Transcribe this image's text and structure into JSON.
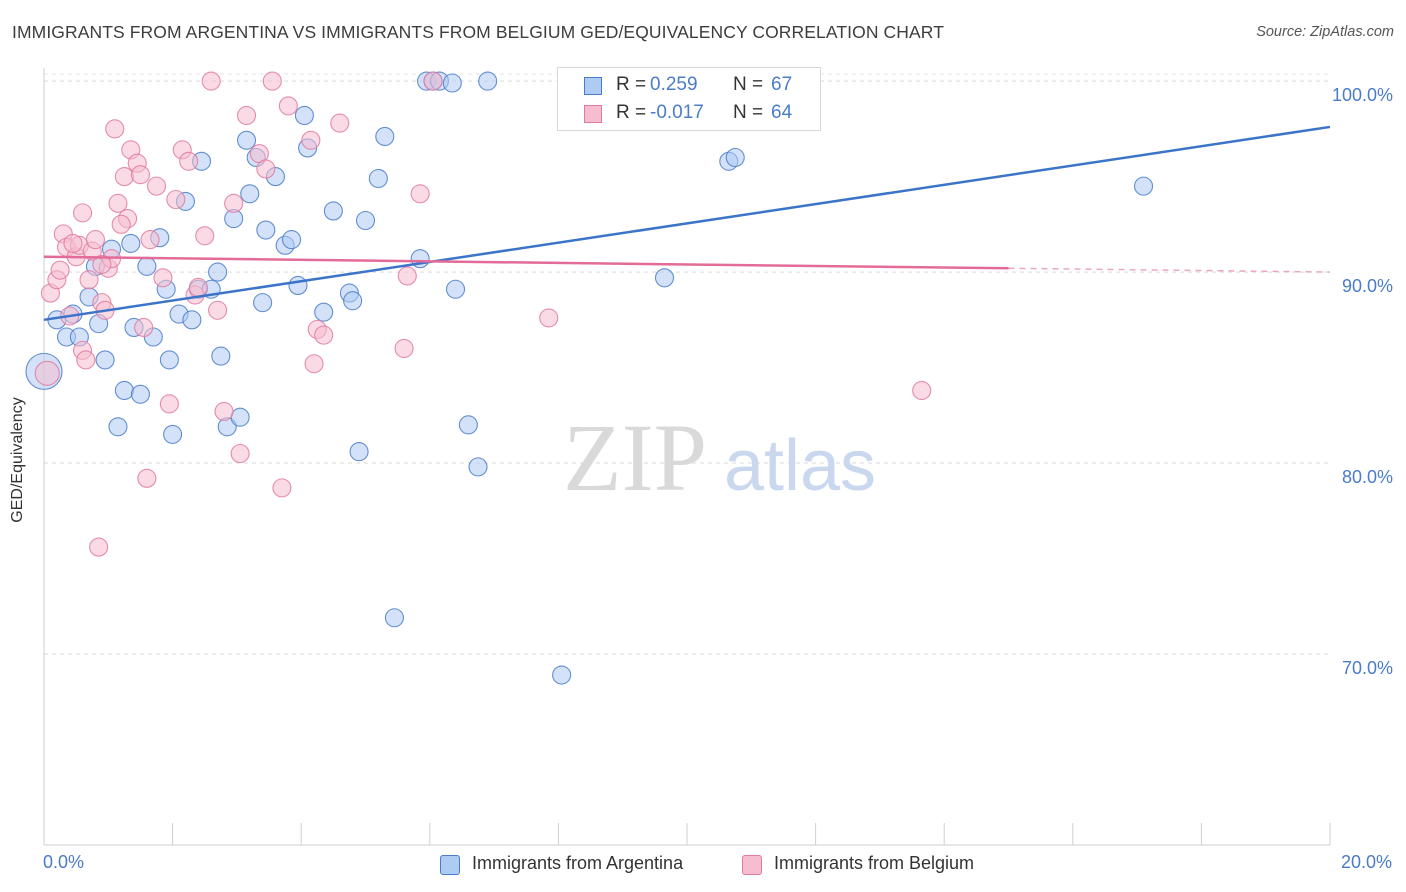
{
  "header": {
    "title": "IMMIGRANTS FROM ARGENTINA VS IMMIGRANTS FROM BELGIUM GED/EQUIVALENCY CORRELATION CHART",
    "source": "Source: ZipAtlas.com"
  },
  "watermark": {
    "zip": "ZIP",
    "atlas": "atlas"
  },
  "stats": [
    {
      "r_label": "R =",
      "r_value": "0.259",
      "n_label": "N =",
      "n_value": "67",
      "color": "#4a7cc9",
      "fill": "#aecbf2"
    },
    {
      "r_label": "R =",
      "r_value": "-0.017",
      "n_label": "N =",
      "n_value": "64",
      "color": "#4a7cc9",
      "fill": "#f6bdd0"
    }
  ],
  "legend": [
    {
      "label": "Immigrants from Argentina",
      "color": "#4a7cc9",
      "fill": "#aecbf2"
    },
    {
      "label": "Immigrants from Belgium",
      "color": "#e07aa0",
      "fill": "#f6bdd0"
    }
  ],
  "chart_data": {
    "type": "scatter",
    "title": "IMMIGRANTS FROM ARGENTINA VS IMMIGRANTS FROM BELGIUM GED/EQUIVALENCY CORRELATION CHART",
    "xlabel": "",
    "ylabel": "GED/Equivalency",
    "xlim": [
      0,
      20
    ],
    "ylim": [
      60,
      101
    ],
    "x_ticks": [
      "0.0%",
      "20.0%"
    ],
    "y_ticks": [
      {
        "value": 100,
        "label": "100.0%"
      },
      {
        "value": 90,
        "label": "90.0%"
      },
      {
        "value": 80,
        "label": "80.0%"
      },
      {
        "value": 70,
        "label": "70.0%"
      }
    ],
    "grid": "horizontal-dashed",
    "series": [
      {
        "name": "Immigrants from Argentina",
        "stroke": "#4a7cc9",
        "fill": "#aecbf2",
        "trend": {
          "x": [
            0,
            20
          ],
          "y": [
            87.5,
            97.6
          ]
        },
        "points": [
          [
            0.0,
            84.8,
            18
          ],
          [
            0.2,
            87.5,
            9
          ],
          [
            0.35,
            86.6,
            9
          ],
          [
            0.45,
            87.8,
            9
          ],
          [
            0.55,
            86.6,
            9
          ],
          [
            0.7,
            88.7,
            9
          ],
          [
            0.8,
            90.3,
            9
          ],
          [
            0.85,
            87.3,
            9
          ],
          [
            0.95,
            85.4,
            9
          ],
          [
            1.05,
            91.2,
            9
          ],
          [
            1.15,
            81.9,
            9
          ],
          [
            1.25,
            83.8,
            9
          ],
          [
            1.35,
            91.5,
            9
          ],
          [
            1.4,
            87.1,
            9
          ],
          [
            1.5,
            83.6,
            9
          ],
          [
            1.6,
            90.3,
            9
          ],
          [
            1.7,
            86.6,
            9
          ],
          [
            1.8,
            91.8,
            9
          ],
          [
            1.9,
            89.1,
            9
          ],
          [
            1.95,
            85.4,
            9
          ],
          [
            2.0,
            81.5,
            9
          ],
          [
            2.1,
            87.8,
            9
          ],
          [
            2.2,
            93.7,
            9
          ],
          [
            2.3,
            87.5,
            9
          ],
          [
            2.4,
            89.1,
            9
          ],
          [
            2.45,
            95.8,
            9
          ],
          [
            2.6,
            89.1,
            9
          ],
          [
            2.7,
            90.0,
            9
          ],
          [
            2.75,
            85.6,
            9
          ],
          [
            2.85,
            81.9,
            9
          ],
          [
            2.95,
            92.8,
            9
          ],
          [
            3.05,
            82.4,
            9
          ],
          [
            3.15,
            96.9,
            9
          ],
          [
            3.2,
            94.1,
            9
          ],
          [
            3.3,
            96.0,
            9
          ],
          [
            3.4,
            88.4,
            9
          ],
          [
            3.45,
            92.2,
            9
          ],
          [
            3.6,
            95.0,
            9
          ],
          [
            3.75,
            91.4,
            9
          ],
          [
            3.85,
            91.7,
            9
          ],
          [
            3.95,
            89.3,
            9
          ],
          [
            4.05,
            98.2,
            9
          ],
          [
            4.1,
            96.5,
            9
          ],
          [
            4.35,
            87.9,
            9
          ],
          [
            4.5,
            93.2,
            9
          ],
          [
            4.75,
            88.9,
            9
          ],
          [
            4.8,
            88.5,
            9
          ],
          [
            4.9,
            80.6,
            9
          ],
          [
            5.0,
            92.7,
            9
          ],
          [
            5.2,
            94.9,
            9
          ],
          [
            5.3,
            97.1,
            9
          ],
          [
            5.45,
            71.9,
            9
          ],
          [
            5.85,
            90.7,
            9
          ],
          [
            5.95,
            100.0,
            9
          ],
          [
            6.05,
            100.0,
            9
          ],
          [
            6.15,
            100.0,
            9
          ],
          [
            6.4,
            89.1,
            9
          ],
          [
            6.35,
            99.9,
            9
          ],
          [
            6.6,
            82.0,
            9
          ],
          [
            6.75,
            79.8,
            9
          ],
          [
            6.9,
            100.0,
            9
          ],
          [
            8.05,
            68.9,
            9
          ],
          [
            8.15,
            100.0,
            9
          ],
          [
            9.65,
            89.7,
            9
          ],
          [
            10.65,
            95.8,
            9
          ],
          [
            10.75,
            96.0,
            9
          ],
          [
            17.1,
            94.5,
            9
          ]
        ]
      },
      {
        "name": "Immigrants from Belgium",
        "stroke": "#e07aa0",
        "fill": "#f6bdd0",
        "trend": {
          "x": [
            0,
            15
          ],
          "y": [
            90.8,
            90.2
          ]
        },
        "trend_dashed": {
          "x": [
            15,
            20
          ],
          "y": [
            90.2,
            90.0
          ]
        },
        "points": [
          [
            0.05,
            84.7,
            12
          ],
          [
            0.1,
            88.9,
            9
          ],
          [
            0.2,
            89.6,
            9
          ],
          [
            0.25,
            90.1,
            9
          ],
          [
            0.3,
            92.0,
            9
          ],
          [
            0.35,
            91.3,
            9
          ],
          [
            0.4,
            87.7,
            9
          ],
          [
            0.5,
            90.8,
            9
          ],
          [
            0.55,
            91.4,
            9
          ],
          [
            0.6,
            85.9,
            9
          ],
          [
            0.6,
            93.1,
            9
          ],
          [
            0.65,
            85.4,
            9
          ],
          [
            0.7,
            89.6,
            9
          ],
          [
            0.75,
            91.1,
            9
          ],
          [
            0.8,
            91.7,
            9
          ],
          [
            0.85,
            75.6,
            9
          ],
          [
            0.9,
            88.4,
            9
          ],
          [
            0.95,
            88.0,
            9
          ],
          [
            1.0,
            90.2,
            9
          ],
          [
            1.05,
            90.7,
            9
          ],
          [
            1.1,
            97.5,
            9
          ],
          [
            1.15,
            93.6,
            9
          ],
          [
            1.25,
            95.0,
            9
          ],
          [
            1.3,
            92.8,
            9
          ],
          [
            1.35,
            96.4,
            9
          ],
          [
            1.45,
            95.7,
            9
          ],
          [
            1.5,
            95.1,
            9
          ],
          [
            1.55,
            87.1,
            9
          ],
          [
            1.6,
            79.2,
            9
          ],
          [
            1.65,
            91.7,
            9
          ],
          [
            1.75,
            94.5,
            9
          ],
          [
            1.85,
            89.7,
            9
          ],
          [
            1.95,
            83.1,
            9
          ],
          [
            2.05,
            93.8,
            9
          ],
          [
            2.15,
            96.4,
            9
          ],
          [
            2.25,
            95.8,
            9
          ],
          [
            2.35,
            88.8,
            9
          ],
          [
            2.4,
            89.2,
            9
          ],
          [
            2.5,
            91.9,
            9
          ],
          [
            2.6,
            100.0,
            9
          ],
          [
            2.7,
            88.0,
            9
          ],
          [
            2.8,
            82.7,
            9
          ],
          [
            2.95,
            93.6,
            9
          ],
          [
            3.05,
            80.5,
            9
          ],
          [
            3.15,
            98.2,
            9
          ],
          [
            3.35,
            96.2,
            9
          ],
          [
            3.45,
            95.4,
            9
          ],
          [
            3.55,
            100.0,
            9
          ],
          [
            3.7,
            78.7,
            9
          ],
          [
            3.8,
            98.7,
            9
          ],
          [
            4.15,
            96.9,
            9
          ],
          [
            4.2,
            85.2,
            9
          ],
          [
            4.25,
            87.0,
            9
          ],
          [
            4.35,
            86.7,
            9
          ],
          [
            4.6,
            97.8,
            9
          ],
          [
            5.6,
            86.0,
            9
          ],
          [
            5.65,
            89.8,
            9
          ],
          [
            5.85,
            94.1,
            9
          ],
          [
            6.05,
            100.0,
            9
          ],
          [
            7.85,
            87.6,
            9
          ],
          [
            13.65,
            83.8,
            9
          ],
          [
            0.45,
            91.5,
            9
          ],
          [
            1.2,
            92.5,
            9
          ],
          [
            0.9,
            90.4,
            9
          ]
        ]
      }
    ]
  }
}
